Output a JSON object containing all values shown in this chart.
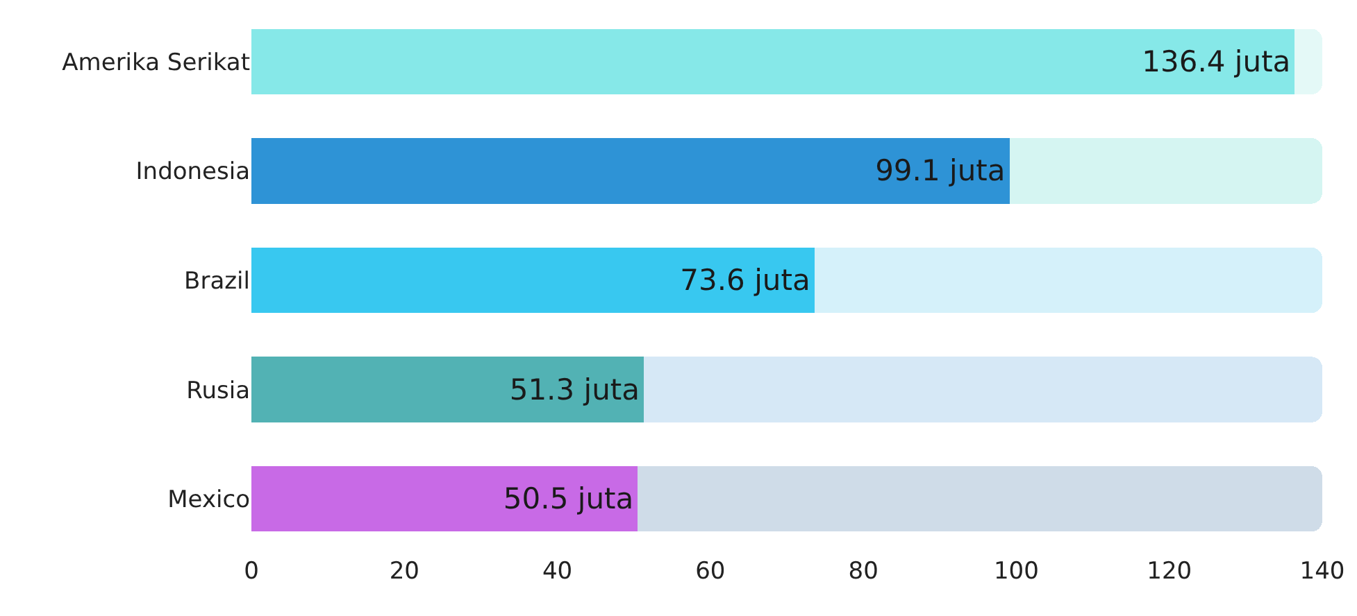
{
  "chart_data": {
    "type": "bar",
    "orientation": "horizontal",
    "stacked": true,
    "categories": [
      "Amerika Serikat",
      "Indonesia",
      "Brazil",
      "Rusia",
      "Mexico"
    ],
    "series": [
      {
        "values": [
          136.4,
          99.1,
          73.6,
          51.3,
          50.5
        ],
        "colors": [
          "#86e8e8",
          "#2e93d6",
          "#38c8f0",
          "#52b2b4",
          "#c86ae6"
        ],
        "value_labels": [
          "136.4 juta",
          "99.1 juta",
          "73.6 juta",
          "51.3 juta",
          "50.5 juta"
        ]
      },
      {
        "values": [
          3.6,
          40.9,
          66.4,
          88.7,
          89.5
        ],
        "colors": [
          "#e4f9f7",
          "#d5f5f2",
          "#d5f1fa",
          "#d6e8f6",
          "#cfdce8"
        ]
      }
    ],
    "xlim": [
      0,
      140
    ],
    "xticks": [
      0,
      20,
      40,
      60,
      80,
      100,
      120,
      140
    ]
  }
}
